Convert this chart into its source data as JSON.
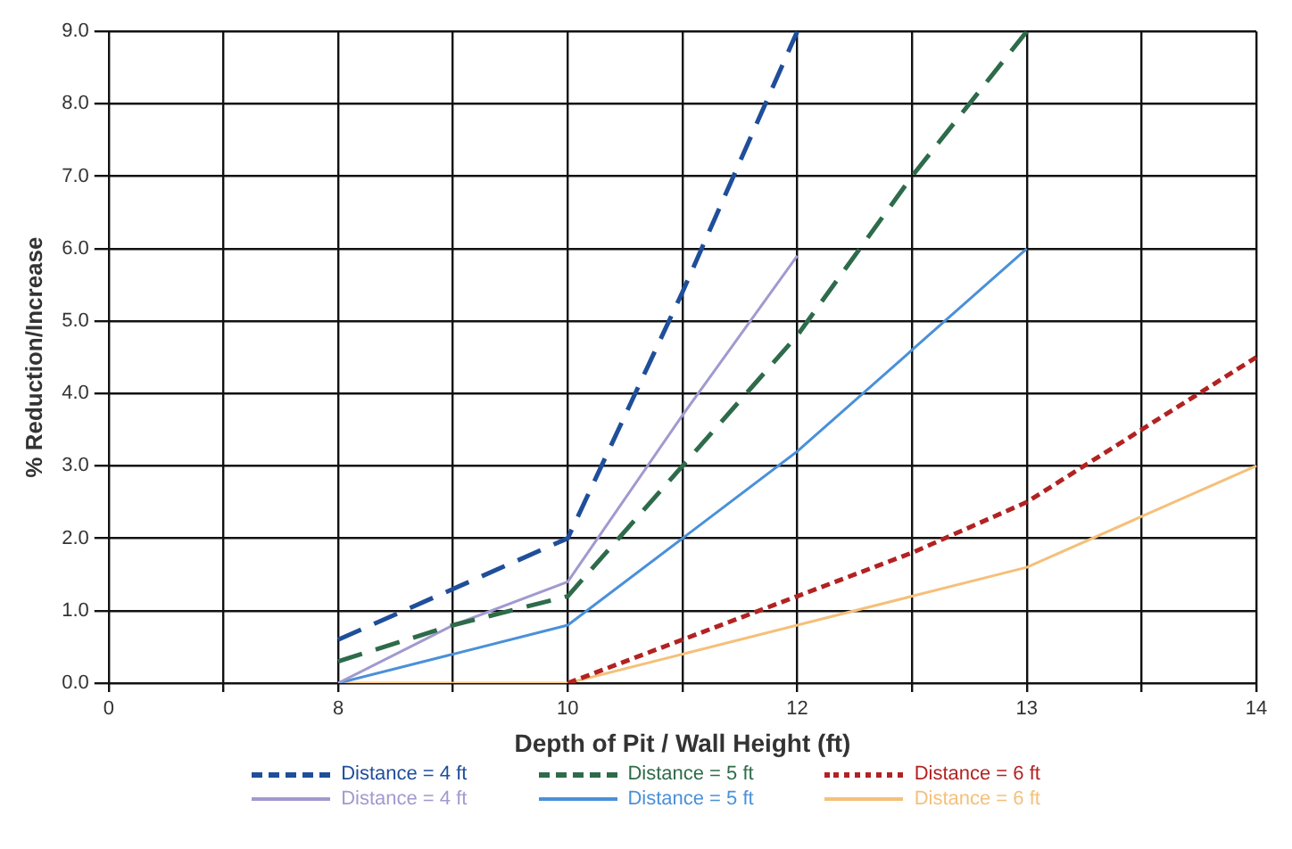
{
  "chart_data": {
    "type": "line",
    "xlabel": "Depth of Pit / Wall Height (ft)",
    "ylabel": "% Reduction/Increase",
    "categories": [
      "0",
      null,
      "8",
      null,
      "10",
      null,
      "12",
      null,
      "13",
      null,
      "14"
    ],
    "series": [
      {
        "name": "Distance = 4 ft",
        "color": "#1f4e9a",
        "line_style": "dashed",
        "values": [
          null,
          null,
          0.6,
          1.3,
          2.0,
          5.4,
          9.0,
          null,
          null,
          null,
          null
        ]
      },
      {
        "name": "Distance = 5 ft",
        "color": "#2e6b4a",
        "line_style": "dashed",
        "values": [
          null,
          null,
          0.3,
          0.8,
          1.2,
          3.0,
          4.8,
          7.0,
          9.0,
          null,
          null
        ]
      },
      {
        "name": "Distance = 6 ft",
        "color": "#b22222",
        "line_style": "dotted",
        "values": [
          null,
          null,
          null,
          null,
          0.0,
          0.6,
          1.2,
          1.8,
          2.5,
          3.5,
          4.5
        ]
      },
      {
        "name": "Distance = 4 ft",
        "color": "#a09ad0",
        "line_style": "solid",
        "values": [
          null,
          null,
          0.0,
          0.8,
          1.4,
          3.7,
          5.9,
          null,
          null,
          null,
          null
        ]
      },
      {
        "name": "Distance = 5 ft",
        "color": "#4a90d9",
        "line_style": "solid",
        "values": [
          null,
          null,
          0.0,
          0.4,
          0.8,
          2.0,
          3.2,
          4.6,
          6.0,
          null,
          null
        ]
      },
      {
        "name": "Distance = 6 ft",
        "color": "#f5c07a",
        "line_style": "solid",
        "values": [
          null,
          null,
          0.0,
          0.0,
          0.0,
          0.4,
          0.8,
          1.2,
          1.6,
          2.3,
          3.0
        ]
      }
    ],
    "ylim": [
      0,
      9
    ],
    "yticks": [
      {
        "value": 0,
        "label": "0.0"
      },
      {
        "value": 1,
        "label": "1.0"
      },
      {
        "value": 2,
        "label": "2.0"
      },
      {
        "value": 3,
        "label": "3.0"
      },
      {
        "value": 4,
        "label": "4.0"
      },
      {
        "value": 5,
        "label": "5.0"
      },
      {
        "value": 6,
        "label": "6.0"
      },
      {
        "value": 7,
        "label": "7.0"
      },
      {
        "value": 8,
        "label": "8.0"
      },
      {
        "value": 9,
        "label": "9.0"
      }
    ],
    "grid": true,
    "legend": "bottom",
    "marker": "none"
  }
}
